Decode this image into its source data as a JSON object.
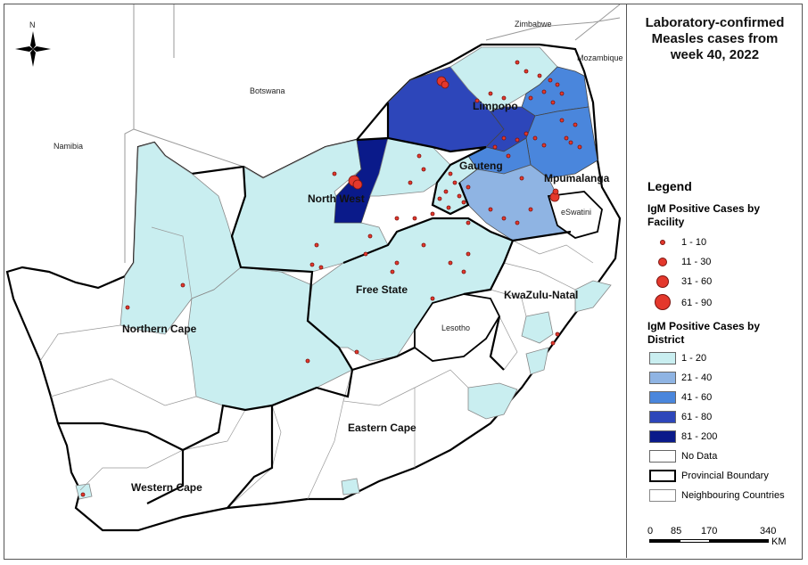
{
  "title_lines": [
    "Laboratory-confirmed",
    "Measles cases from",
    "week 40, 2022"
  ],
  "legend": {
    "heading": "Legend",
    "facility_heading": "IgM Positive Cases by Facility",
    "facility_classes": [
      {
        "label": "1 - 10",
        "size": 5
      },
      {
        "label": "11 - 30",
        "size": 9
      },
      {
        "label": "31 - 60",
        "size": 13
      },
      {
        "label": "61 - 90",
        "size": 18
      }
    ],
    "district_heading": "IgM Positive Cases by District",
    "district_classes": [
      {
        "label": "1 - 20",
        "color": "#c9eef0"
      },
      {
        "label": "21 - 40",
        "color": "#8fb4e3"
      },
      {
        "label": "41 - 60",
        "color": "#4a86dc"
      },
      {
        "label": "61 - 80",
        "color": "#2d46ba"
      },
      {
        "label": "81 - 200",
        "color": "#0a1a8a"
      },
      {
        "label": "No Data",
        "color": "#ffffff"
      }
    ],
    "provincial_boundary": "Provincial Boundary",
    "neighbouring_countries": "Neighbouring Countries"
  },
  "scale_bar": {
    "ticks": [
      "0",
      "85",
      "170",
      "340"
    ],
    "unit": "KM"
  },
  "map": {
    "north_arrow": "N",
    "countries": [
      "Zimbabwe",
      "Mozambique",
      "Botswana",
      "Namibia",
      "eSwatini",
      "Lesotho"
    ],
    "provinces": [
      "Limpopo",
      "Gauteng",
      "Mpumalanga",
      "North West",
      "Free State",
      "KwaZulu-Natal",
      "Northern Cape",
      "Eastern Cape",
      "Western Cape"
    ]
  },
  "colors": {
    "outbreak_dot": "#e4382c",
    "dot_outline": "#7a1410"
  }
}
